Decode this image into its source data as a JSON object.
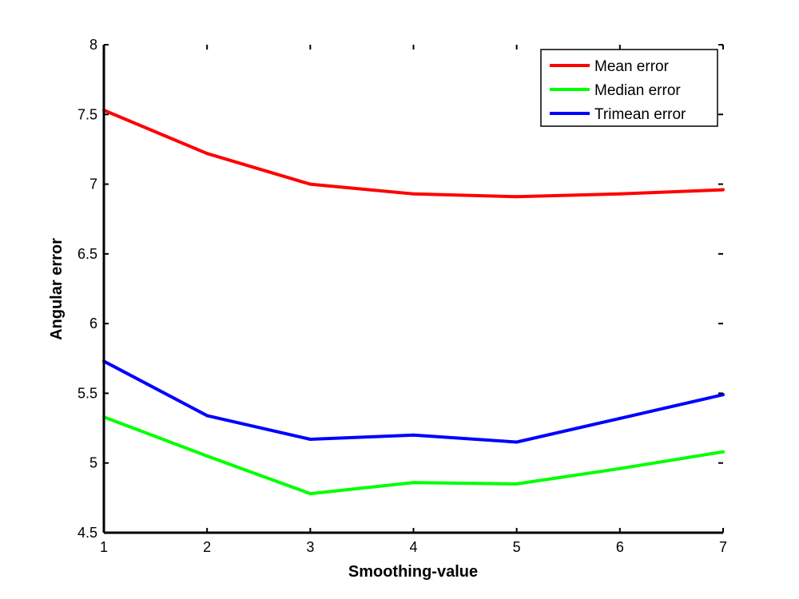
{
  "chart_data": {
    "type": "line",
    "title": "",
    "xlabel": "Smoothing-value",
    "ylabel": "Angular error",
    "xlim": [
      1,
      7
    ],
    "ylim": [
      4.5,
      8
    ],
    "xticks": [
      1,
      2,
      3,
      4,
      5,
      6,
      7
    ],
    "xtick_labels": [
      "1",
      "2",
      "3",
      "4",
      "5",
      "6",
      "7"
    ],
    "yticks": [
      4.5,
      5,
      5.5,
      6,
      6.5,
      7,
      7.5,
      8
    ],
    "ytick_labels": [
      "4.5",
      "5",
      "5.5",
      "6",
      "6.5",
      "7",
      "7.5",
      "8"
    ],
    "x": [
      1,
      2,
      3,
      4,
      5,
      6,
      7
    ],
    "series": [
      {
        "name": "Mean error",
        "color": "#ff0000",
        "values": [
          7.53,
          7.22,
          7.0,
          6.93,
          6.91,
          6.93,
          6.96
        ]
      },
      {
        "name": "Median error",
        "color": "#00ff00",
        "values": [
          5.33,
          5.05,
          4.78,
          4.86,
          4.85,
          4.96,
          5.08
        ]
      },
      {
        "name": "Trimean error",
        "color": "#0000ff",
        "values": [
          5.73,
          5.34,
          5.17,
          5.2,
          5.15,
          5.32,
          5.49
        ]
      }
    ],
    "grid": false,
    "legend_position": "top-right"
  }
}
